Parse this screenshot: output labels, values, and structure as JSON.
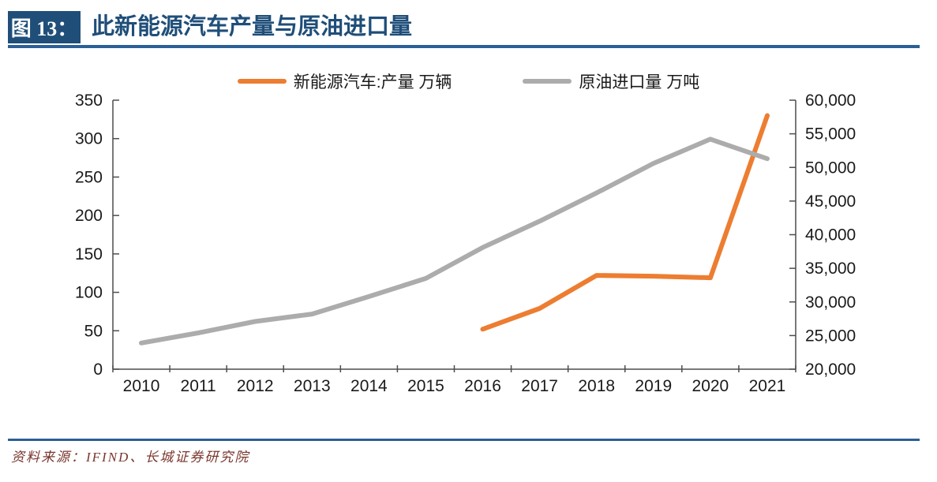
{
  "header": {
    "figure_label": "图 13：",
    "title": "此新能源汽车产量与原油进口量"
  },
  "footer": {
    "source": "资料来源：IFIND、长城证券研究院"
  },
  "colors": {
    "accent_blue": "#1F4E79",
    "rule_blue": "#2B5F97",
    "nev_orange": "#ED7D31",
    "oil_gray": "#ACACAC",
    "axis_line": "#4d4d4d",
    "axis_text": "#1a1a1a",
    "source_maroon": "#7A372E"
  },
  "chart_data": {
    "type": "line",
    "title": "",
    "categories": [
      "2010",
      "2011",
      "2012",
      "2013",
      "2014",
      "2015",
      "2016",
      "2017",
      "2018",
      "2019",
      "2020",
      "2021"
    ],
    "series": [
      {
        "name": "新能源汽车:产量 万辆",
        "axis": "left",
        "color": "#ED7D31",
        "values": [
          null,
          null,
          null,
          null,
          null,
          null,
          52,
          79,
          122,
          121,
          119,
          330
        ]
      },
      {
        "name": "原油进口量 万吨",
        "axis": "right",
        "color": "#ACACAC",
        "values": [
          23900,
          25400,
          27100,
          28200,
          30800,
          33500,
          38100,
          42000,
          46200,
          50600,
          54200,
          51300
        ]
      }
    ],
    "left_axis": {
      "min": 0,
      "max": 350,
      "step": 50,
      "labels": [
        "0",
        "50",
        "100",
        "150",
        "200",
        "250",
        "300",
        "350"
      ]
    },
    "right_axis": {
      "min": 20000,
      "max": 60000,
      "step": 5000,
      "labels": [
        "20,000",
        "25,000",
        "30,000",
        "35,000",
        "40,000",
        "45,000",
        "50,000",
        "55,000",
        "60,000"
      ]
    },
    "legend_position": "top",
    "grid": false
  }
}
